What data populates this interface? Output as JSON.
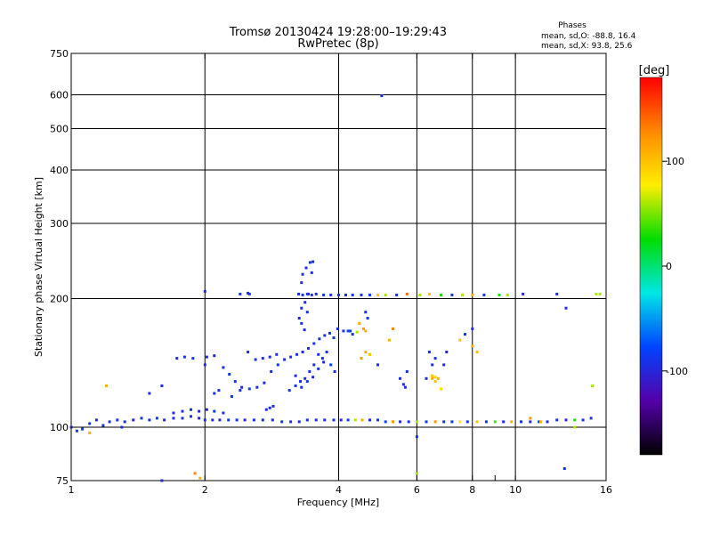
{
  "chart_data": {
    "type": "scatter",
    "title": "Tromsø 20130424 19:28:00–19:29:43",
    "subtitle": "RwPretec (8p)",
    "stats": {
      "heading": "Phases",
      "line_o": "mean, sd,O: -88.8, 16.4",
      "line_x": "mean, sd,X:  93.8, 25.6"
    },
    "xlabel": "Frequency [MHz]",
    "ylabel": "Stationary phase Virtual Height [km]",
    "x_scale": "log",
    "y_scale": "log",
    "xlim": [
      1,
      16
    ],
    "ylim": [
      75,
      750
    ],
    "x_ticks": [
      1,
      2,
      4,
      6,
      8,
      10,
      16
    ],
    "x_minor_ticks": [
      9
    ],
    "y_ticks": [
      75,
      100,
      200,
      300,
      400,
      500,
      600,
      750
    ],
    "grid_x": [
      2,
      4,
      6,
      8,
      10
    ],
    "grid_y": [
      100,
      200,
      300,
      400,
      500,
      600
    ],
    "grid": true,
    "colorbar": {
      "label": "[deg]",
      "range": [
        -180,
        180
      ],
      "ticks": [
        100,
        0,
        -100
      ],
      "colors": [
        "#ff0000",
        "#ff8800",
        "#ffee00",
        "#00dd00",
        "#00e6e6",
        "#0044ff",
        "#5500aa",
        "#000000"
      ],
      "legend_placement": "right"
    },
    "series": [
      {
        "points": [
          [
            1.0,
            100,
            -95
          ],
          [
            1.03,
            98,
            -90
          ],
          [
            1.06,
            99,
            -85
          ],
          [
            1.1,
            102,
            -95
          ],
          [
            1.14,
            104,
            -100
          ],
          [
            1.18,
            101,
            -92
          ],
          [
            1.22,
            103,
            -97
          ],
          [
            1.27,
            104,
            -88
          ],
          [
            1.32,
            103,
            -95
          ],
          [
            1.38,
            104,
            -100
          ],
          [
            1.44,
            105,
            -90
          ],
          [
            1.5,
            104,
            -95
          ],
          [
            1.56,
            105,
            -85
          ],
          [
            1.62,
            104,
            -100
          ],
          [
            1.7,
            105,
            -95
          ],
          [
            1.78,
            105,
            -90
          ],
          [
            1.86,
            106,
            -95
          ],
          [
            1.94,
            105,
            -100
          ],
          [
            2.0,
            104,
            -92
          ],
          [
            2.08,
            104,
            -96
          ],
          [
            2.16,
            104,
            -95
          ],
          [
            2.26,
            104,
            -88
          ],
          [
            2.36,
            104,
            -95
          ],
          [
            2.46,
            104,
            -99
          ],
          [
            2.58,
            104,
            -92
          ],
          [
            2.7,
            104,
            -95
          ],
          [
            2.84,
            104,
            -95
          ],
          [
            2.98,
            103,
            -90
          ],
          [
            3.12,
            103,
            -95
          ],
          [
            3.26,
            103,
            -96
          ],
          [
            3.4,
            104,
            -92
          ],
          [
            3.56,
            104,
            -94
          ],
          [
            3.72,
            104,
            -95
          ],
          [
            3.9,
            104,
            -90
          ],
          [
            4.05,
            104,
            -95
          ],
          [
            4.2,
            104,
            -80
          ],
          [
            4.36,
            104,
            60
          ],
          [
            4.52,
            104,
            110
          ],
          [
            4.7,
            104,
            -95
          ],
          [
            4.9,
            104,
            -90
          ],
          [
            5.1,
            103,
            -80
          ],
          [
            5.3,
            103,
            120
          ],
          [
            5.5,
            103,
            -95
          ],
          [
            5.75,
            103,
            -90
          ],
          [
            6.0,
            103,
            60
          ],
          [
            6.3,
            103,
            -85
          ],
          [
            6.6,
            103,
            120
          ],
          [
            6.9,
            103,
            -95
          ],
          [
            7.2,
            103,
            -90
          ],
          [
            7.5,
            103,
            80
          ],
          [
            7.8,
            103,
            -92
          ],
          [
            8.2,
            103,
            100
          ],
          [
            8.6,
            103,
            -95
          ],
          [
            9.0,
            103,
            40
          ],
          [
            9.4,
            103,
            -95
          ],
          [
            9.8,
            103,
            110
          ],
          [
            10.3,
            103,
            -90
          ],
          [
            10.8,
            103,
            -95
          ],
          [
            11.3,
            103,
            -85
          ],
          [
            11.8,
            103,
            -95
          ],
          [
            12.4,
            104,
            -90
          ],
          [
            13.0,
            104,
            -95
          ],
          [
            13.6,
            104,
            30
          ],
          [
            14.2,
            104,
            -90
          ],
          [
            14.8,
            105,
            -95
          ],
          [
            1.7,
            108,
            -95
          ],
          [
            1.78,
            109,
            -92
          ],
          [
            1.86,
            110,
            -90
          ],
          [
            1.94,
            109,
            -95
          ],
          [
            2.02,
            110,
            -100
          ],
          [
            2.1,
            109,
            -88
          ],
          [
            2.2,
            108,
            -95
          ],
          [
            1.73,
            145,
            -95
          ],
          [
            1.8,
            146,
            -92
          ],
          [
            1.88,
            145,
            -90
          ],
          [
            2.02,
            146,
            -95
          ],
          [
            2.1,
            147,
            -100
          ],
          [
            2.2,
            138,
            -95
          ],
          [
            2.27,
            133,
            -90
          ],
          [
            2.34,
            128,
            -92
          ],
          [
            2.42,
            124,
            -95
          ],
          [
            2.52,
            123,
            -88
          ],
          [
            2.62,
            124,
            -95
          ],
          [
            2.72,
            127,
            -100
          ],
          [
            2.82,
            135,
            -95
          ],
          [
            2.92,
            140,
            -90
          ],
          [
            3.02,
            144,
            -96
          ],
          [
            3.12,
            146,
            -92
          ],
          [
            3.22,
            148,
            -90
          ],
          [
            3.32,
            150,
            -95
          ],
          [
            3.42,
            153,
            -94
          ],
          [
            3.52,
            157,
            -90
          ],
          [
            3.62,
            161,
            -95
          ],
          [
            3.72,
            164,
            -92
          ],
          [
            3.82,
            166,
            -95
          ],
          [
            3.9,
            162,
            -90
          ],
          [
            3.98,
            170,
            -95
          ],
          [
            4.1,
            168,
            -92
          ],
          [
            4.25,
            168,
            -80
          ],
          [
            4.4,
            167,
            60
          ],
          [
            2.5,
            150,
            -95
          ],
          [
            2.6,
            144,
            -92
          ],
          [
            2.7,
            145,
            -90
          ],
          [
            2.8,
            146,
            -95
          ],
          [
            2.9,
            148,
            -95
          ],
          [
            3.2,
            132,
            -95
          ],
          [
            3.28,
            128,
            -92
          ],
          [
            3.36,
            130,
            -95
          ],
          [
            3.44,
            135,
            -90
          ],
          [
            3.52,
            140,
            -95
          ],
          [
            3.6,
            148,
            -92
          ],
          [
            3.68,
            145,
            -95
          ],
          [
            3.76,
            150,
            -90
          ],
          [
            3.84,
            140,
            -80
          ],
          [
            3.92,
            135,
            -95
          ],
          [
            3.1,
            122,
            -95
          ],
          [
            3.2,
            125,
            -90
          ],
          [
            3.3,
            124,
            -92
          ],
          [
            3.4,
            128,
            -95
          ],
          [
            3.5,
            131,
            -95
          ],
          [
            3.6,
            137,
            -90
          ],
          [
            3.7,
            142,
            -95
          ],
          [
            3.3,
            190,
            -95
          ],
          [
            3.36,
            196,
            -92
          ],
          [
            3.42,
            205,
            -95
          ],
          [
            3.3,
            175,
            -90
          ],
          [
            3.35,
            169,
            -95
          ],
          [
            3.26,
            180,
            -95
          ],
          [
            3.4,
            186,
            -92
          ],
          [
            3.38,
            236,
            -95
          ],
          [
            3.45,
            243,
            -90
          ],
          [
            3.5,
            244,
            -95
          ],
          [
            3.32,
            228,
            -92
          ],
          [
            3.3,
            218,
            -95
          ],
          [
            3.25,
            205,
            -95
          ],
          [
            3.32,
            204,
            -90
          ],
          [
            3.4,
            205,
            -92
          ],
          [
            3.48,
            204,
            -95
          ],
          [
            3.56,
            205,
            -95
          ],
          [
            3.7,
            204,
            -90
          ],
          [
            3.84,
            204,
            -95
          ],
          [
            4.0,
            204,
            -92
          ],
          [
            4.15,
            204,
            -95
          ],
          [
            4.3,
            204,
            -90
          ],
          [
            4.5,
            204,
            -95
          ],
          [
            4.7,
            204,
            -80
          ],
          [
            4.9,
            204,
            100
          ],
          [
            5.1,
            204,
            60
          ],
          [
            5.4,
            204,
            -95
          ],
          [
            5.7,
            205,
            140
          ],
          [
            6.1,
            204,
            60
          ],
          [
            6.4,
            205,
            100
          ],
          [
            6.8,
            204,
            30
          ],
          [
            7.2,
            204,
            -95
          ],
          [
            7.6,
            204,
            60
          ],
          [
            8.0,
            204,
            110
          ],
          [
            8.5,
            204,
            -90
          ],
          [
            9.2,
            204,
            30
          ],
          [
            9.6,
            204,
            60
          ],
          [
            10.4,
            205,
            -95
          ],
          [
            12.4,
            205,
            -95
          ],
          [
            15.2,
            205,
            60
          ],
          [
            2.0,
            208,
            -95
          ],
          [
            2.4,
            205,
            -90
          ],
          [
            2.5,
            206,
            -95
          ],
          [
            2.52,
            205,
            -92
          ],
          [
            4.6,
            186,
            -95
          ],
          [
            4.65,
            180,
            -90
          ],
          [
            4.45,
            175,
            110
          ],
          [
            4.55,
            170,
            120
          ],
          [
            4.6,
            168,
            110
          ],
          [
            4.2,
            168,
            -80
          ],
          [
            4.3,
            165,
            -95
          ],
          [
            4.6,
            150,
            110
          ],
          [
            4.5,
            145,
            120
          ],
          [
            4.7,
            148,
            100
          ],
          [
            4.9,
            140,
            -95
          ],
          [
            5.2,
            160,
            110
          ],
          [
            5.3,
            170,
            130
          ],
          [
            5.5,
            130,
            -95
          ],
          [
            5.6,
            126,
            -95
          ],
          [
            5.65,
            124,
            -90
          ],
          [
            5.7,
            135,
            -95
          ],
          [
            6.3,
            130,
            -95
          ],
          [
            6.5,
            130,
            110
          ],
          [
            6.6,
            128,
            100
          ],
          [
            6.8,
            123,
            90
          ],
          [
            6.9,
            140,
            -95
          ],
          [
            7.0,
            150,
            -95
          ],
          [
            6.6,
            145,
            -92
          ],
          [
            6.5,
            140,
            -95
          ],
          [
            6.4,
            150,
            -90
          ],
          [
            7.5,
            160,
            100
          ],
          [
            7.7,
            165,
            -90
          ],
          [
            8.0,
            155,
            110
          ],
          [
            8.2,
            150,
            100
          ],
          [
            8.0,
            170,
            -95
          ],
          [
            6.5,
            132,
            100
          ],
          [
            6.6,
            131,
            90
          ],
          [
            6.7,
            130,
            110
          ],
          [
            13.0,
            190,
            -95
          ],
          [
            12.9,
            80,
            -95
          ],
          [
            6.0,
            95,
            -95
          ],
          [
            6.0,
            78,
            60
          ],
          [
            3.48,
            230,
            -95
          ],
          [
            5.0,
            597,
            -95
          ],
          [
            1.1,
            97,
            110
          ],
          [
            1.2,
            125,
            110
          ],
          [
            1.3,
            100,
            -95
          ],
          [
            1.9,
            78,
            130
          ],
          [
            1.95,
            76,
            110
          ],
          [
            1.6,
            75,
            -95
          ],
          [
            1.5,
            120,
            -95
          ],
          [
            1.6,
            125,
            -95
          ],
          [
            2.0,
            140,
            -95
          ],
          [
            2.1,
            120,
            -92
          ],
          [
            2.15,
            122,
            -95
          ],
          [
            2.3,
            118,
            -90
          ],
          [
            2.4,
            122,
            -95
          ],
          [
            2.75,
            110,
            -95
          ],
          [
            2.8,
            111,
            -90
          ],
          [
            2.85,
            112,
            -95
          ],
          [
            14.9,
            125,
            60
          ],
          [
            15.5,
            205,
            60
          ],
          [
            13.6,
            100,
            60
          ],
          [
            11.4,
            103,
            110
          ],
          [
            10.8,
            105,
            120
          ]
        ]
      }
    ]
  }
}
